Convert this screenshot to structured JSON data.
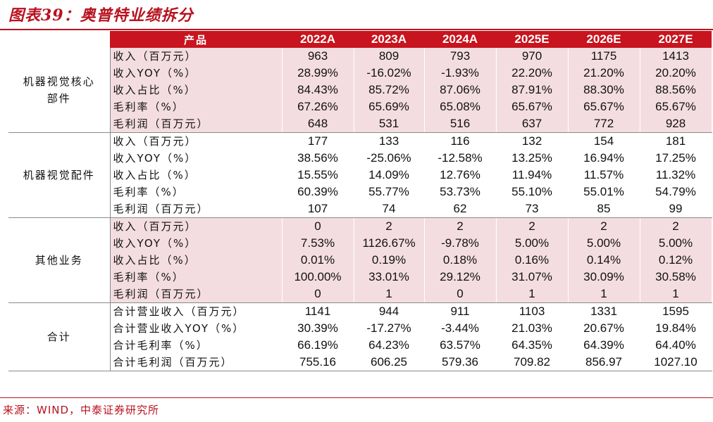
{
  "title": "图表39：奥普特业绩拆分",
  "table": {
    "headers": [
      "产品",
      "2022A",
      "2023A",
      "2024A",
      "2025E",
      "2026E",
      "2027E"
    ],
    "groups": [
      {
        "name": "机器视觉核心部件",
        "rows": [
          {
            "metric": "收入（百万元）",
            "values": [
              "963",
              "809",
              "793",
              "970",
              "1175",
              "1413"
            ]
          },
          {
            "metric": "收入YOY（%）",
            "values": [
              "28.99%",
              "-16.02%",
              "-1.93%",
              "22.20%",
              "21.20%",
              "20.20%"
            ]
          },
          {
            "metric": "收入占比（%）",
            "values": [
              "84.43%",
              "85.72%",
              "87.06%",
              "87.91%",
              "88.30%",
              "88.56%"
            ]
          },
          {
            "metric": "毛利率（%）",
            "values": [
              "67.26%",
              "65.69%",
              "65.08%",
              "65.67%",
              "65.67%",
              "65.67%"
            ]
          },
          {
            "metric": "毛利润（百万元）",
            "values": [
              "648",
              "531",
              "516",
              "637",
              "772",
              "928"
            ]
          }
        ]
      },
      {
        "name": "机器视觉配件",
        "rows": [
          {
            "metric": "收入（百万元）",
            "values": [
              "177",
              "133",
              "116",
              "132",
              "154",
              "181"
            ]
          },
          {
            "metric": "收入YOY（%）",
            "values": [
              "38.56%",
              "-25.06%",
              "-12.58%",
              "13.25%",
              "16.94%",
              "17.25%"
            ]
          },
          {
            "metric": "收入占比（%）",
            "values": [
              "15.55%",
              "14.09%",
              "12.76%",
              "11.94%",
              "11.57%",
              "11.32%"
            ]
          },
          {
            "metric": "毛利率（%）",
            "values": [
              "60.39%",
              "55.77%",
              "53.73%",
              "55.10%",
              "55.01%",
              "54.79%"
            ]
          },
          {
            "metric": "毛利润（百万元）",
            "values": [
              "107",
              "74",
              "62",
              "73",
              "85",
              "99"
            ]
          }
        ]
      },
      {
        "name": "其他业务",
        "rows": [
          {
            "metric": "收入（百万元）",
            "values": [
              "0",
              "2",
              "2",
              "2",
              "2",
              "2"
            ]
          },
          {
            "metric": "收入YOY（%）",
            "values": [
              "7.53%",
              "1126.67%",
              "-9.78%",
              "5.00%",
              "5.00%",
              "5.00%"
            ]
          },
          {
            "metric": "收入占比（%）",
            "values": [
              "0.01%",
              "0.19%",
              "0.18%",
              "0.16%",
              "0.14%",
              "0.12%"
            ]
          },
          {
            "metric": "毛利率（%）",
            "values": [
              "100.00%",
              "33.01%",
              "29.12%",
              "31.07%",
              "30.09%",
              "30.58%"
            ]
          },
          {
            "metric": "毛利润（百万元）",
            "values": [
              "0",
              "1",
              "0",
              "1",
              "1",
              "1"
            ]
          }
        ]
      },
      {
        "name": "合计",
        "rows": [
          {
            "metric": "合计营业收入（百万元）",
            "values": [
              "1141",
              "944",
              "911",
              "1103",
              "1331",
              "1595"
            ]
          },
          {
            "metric": "合计营业收入YOY（%）",
            "values": [
              "30.39%",
              "-17.27%",
              "-3.44%",
              "21.03%",
              "20.67%",
              "19.84%"
            ]
          },
          {
            "metric": "合计毛利率（%）",
            "values": [
              "66.19%",
              "64.23%",
              "63.57%",
              "64.35%",
              "64.39%",
              "64.40%"
            ]
          },
          {
            "metric": "合计毛利润（百万元）",
            "values": [
              "755.16",
              "606.25",
              "579.36",
              "709.82",
              "856.97",
              "1027.10"
            ]
          }
        ]
      }
    ]
  },
  "source": "来源：WIND，中泰证券研究所",
  "colors": {
    "accent": "#c8141e",
    "row_highlight": "#f4dde0"
  }
}
